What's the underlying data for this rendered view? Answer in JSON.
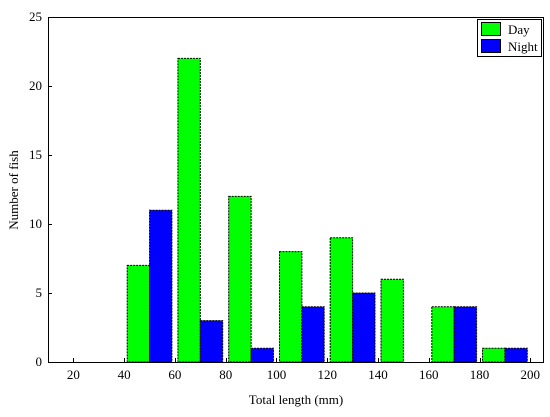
{
  "chart_data": {
    "type": "bar",
    "xlabel": "Total length (mm)",
    "ylabel": "Number of fish",
    "x_ticks": [
      20,
      40,
      60,
      80,
      100,
      120,
      140,
      160,
      180,
      200
    ],
    "y_ticks": [
      0,
      5,
      10,
      15,
      20,
      25
    ],
    "xlim": [
      10,
      205
    ],
    "ylim": [
      0,
      25
    ],
    "bin_width": 20,
    "categories": [
      "40-60",
      "60-80",
      "80-100",
      "100-120",
      "120-140",
      "140-160",
      "160-180",
      "180-200"
    ],
    "bin_starts": [
      40,
      60,
      80,
      100,
      120,
      140,
      160,
      180
    ],
    "series": [
      {
        "name": "Day",
        "color": "#00ff00",
        "values": [
          7,
          22,
          12,
          8,
          9,
          6,
          4,
          1
        ]
      },
      {
        "name": "Night",
        "color": "#0000ff",
        "values": [
          11,
          3,
          1,
          4,
          5,
          0,
          4,
          1
        ]
      }
    ],
    "legend_position": "top-right",
    "grid": false
  }
}
